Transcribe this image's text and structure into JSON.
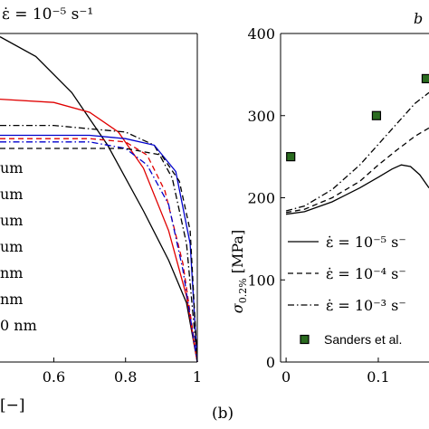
{
  "chart_data": [
    {
      "panel": "a",
      "type": "line",
      "title_visible": "ε̇ = 10⁻⁵ s⁻¹",
      "xlabel_visible": "[−]",
      "x_ticks": [
        0.6,
        0.8,
        1
      ],
      "x_tick_labels": [
        "0.6",
        "0.8",
        "1"
      ],
      "xlim": [
        0.45,
        1.0
      ],
      "legend_visible": [
        "um",
        "um",
        "um",
        "um",
        "nm",
        "nm",
        "0 nm"
      ],
      "legend_placement": "left",
      "series": [
        {
          "color": "#000000",
          "style": "solid",
          "x": [
            0.45,
            0.55,
            0.65,
            0.75,
            0.85,
            0.92,
            0.97,
            1.0
          ],
          "y": [
            0.99,
            0.93,
            0.82,
            0.66,
            0.46,
            0.31,
            0.18,
            0.0
          ]
        },
        {
          "color": "#e00000",
          "style": "solid",
          "x": [
            0.45,
            0.6,
            0.7,
            0.78,
            0.85,
            0.92,
            0.97,
            1.0
          ],
          "y": [
            0.8,
            0.79,
            0.76,
            0.7,
            0.59,
            0.4,
            0.2,
            0.0
          ]
        },
        {
          "color": "#000000",
          "style": "dash-dot",
          "x": [
            0.45,
            0.6,
            0.7,
            0.8,
            0.88,
            0.93,
            0.97,
            1.0
          ],
          "y": [
            0.72,
            0.72,
            0.71,
            0.7,
            0.66,
            0.56,
            0.36,
            0.0
          ]
        },
        {
          "color": "#0000cc",
          "style": "solid",
          "x": [
            0.45,
            0.6,
            0.7,
            0.8,
            0.88,
            0.94,
            0.98,
            1.0
          ],
          "y": [
            0.69,
            0.69,
            0.69,
            0.68,
            0.66,
            0.58,
            0.36,
            0.0
          ]
        },
        {
          "color": "#e00000",
          "style": "dashed",
          "x": [
            0.45,
            0.6,
            0.7,
            0.8,
            0.86,
            0.91,
            0.96,
            1.0
          ],
          "y": [
            0.68,
            0.68,
            0.68,
            0.67,
            0.63,
            0.52,
            0.3,
            0.0
          ]
        },
        {
          "color": "#0000cc",
          "style": "dash-dot",
          "x": [
            0.45,
            0.6,
            0.7,
            0.8,
            0.86,
            0.92,
            0.96,
            1.0
          ],
          "y": [
            0.67,
            0.67,
            0.67,
            0.65,
            0.6,
            0.48,
            0.28,
            0.0
          ]
        },
        {
          "color": "#000000",
          "style": "dashed",
          "x": [
            0.45,
            0.6,
            0.7,
            0.8,
            0.9,
            0.95,
            0.98,
            1.0
          ],
          "y": [
            0.65,
            0.65,
            0.65,
            0.65,
            0.63,
            0.55,
            0.4,
            0.0
          ]
        }
      ]
    },
    {
      "panel": "b",
      "type": "line",
      "panel_label": "(b)",
      "ylabel": "σ0.2% [MPa]",
      "ylim": [
        0,
        400
      ],
      "y_ticks": [
        0,
        100,
        200,
        300,
        400
      ],
      "x_ticks": [
        0,
        0.1
      ],
      "x_tick_labels": [
        "0",
        "0.1"
      ],
      "xlim": [
        -0.006,
        0.155
      ],
      "legend_placement": "bottom-right",
      "legend": [
        {
          "style": "solid",
          "label": "ε̇ = 10⁻⁵ s⁻"
        },
        {
          "style": "dashed",
          "label": "ε̇ = 10⁻⁴ s⁻"
        },
        {
          "style": "dash-dot",
          "label": "ε̇ = 10⁻³ s⁻"
        },
        {
          "style": "marker",
          "label": "Sanders et al."
        }
      ],
      "series": [
        {
          "name": "ε̇ = 10⁻⁵ s⁻",
          "style": "solid",
          "x": [
            0,
            0.02,
            0.05,
            0.08,
            0.1,
            0.115,
            0.125,
            0.135,
            0.145,
            0.155
          ],
          "y": [
            180,
            183,
            195,
            212,
            225,
            235,
            240,
            238,
            228,
            212
          ]
        },
        {
          "name": "ε̇ = 10⁻⁴ s⁻",
          "style": "dashed",
          "x": [
            0,
            0.02,
            0.05,
            0.08,
            0.1,
            0.12,
            0.14,
            0.155
          ],
          "y": [
            182,
            186,
            200,
            220,
            240,
            258,
            275,
            285
          ]
        },
        {
          "name": "ε̇ = 10⁻³ s⁻",
          "style": "dash-dot",
          "x": [
            0,
            0.02,
            0.05,
            0.08,
            0.1,
            0.12,
            0.14,
            0.155
          ],
          "y": [
            184,
            190,
            210,
            240,
            265,
            290,
            315,
            328
          ]
        },
        {
          "name": "Sanders et al.",
          "style": "marker",
          "x": [
            0.005,
            0.098,
            0.152
          ],
          "y": [
            250,
            300,
            345
          ]
        }
      ]
    }
  ]
}
